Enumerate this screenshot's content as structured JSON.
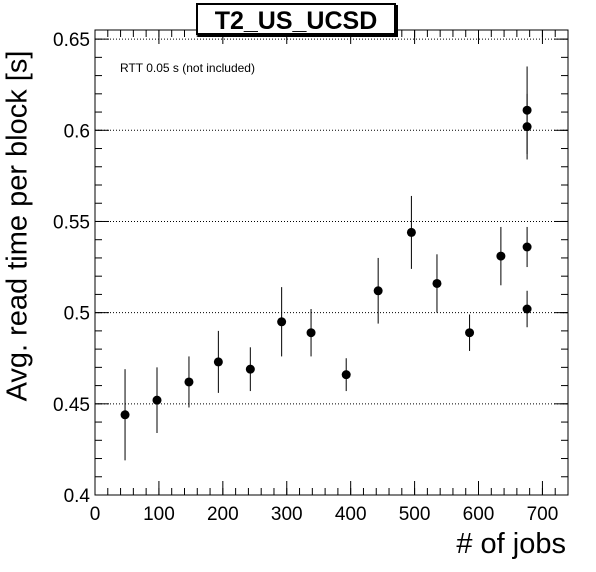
{
  "chart_data": {
    "type": "scatter",
    "title": "T2_US_UCSD",
    "xlabel": "# of jobs",
    "ylabel": "Avg. read time per block [s]",
    "annotation": "RTT 0.05 s (not included)",
    "xlim": [
      0,
      740
    ],
    "ylim": [
      0.4,
      0.655
    ],
    "xticks": [
      0,
      100,
      200,
      300,
      400,
      500,
      600,
      700
    ],
    "yticks": [
      0.4,
      0.45,
      0.5,
      0.55,
      0.6,
      0.65
    ],
    "ytick_labels": [
      "0.4",
      "0.45",
      "0.5",
      "0.55",
      "0.6",
      "0.65"
    ],
    "grid": "horizontal dotted",
    "points": [
      {
        "x": 47,
        "y": 0.444,
        "err": 0.025
      },
      {
        "x": 97,
        "y": 0.452,
        "err": 0.018
      },
      {
        "x": 147,
        "y": 0.462,
        "err": 0.014
      },
      {
        "x": 193,
        "y": 0.473,
        "err": 0.017
      },
      {
        "x": 243,
        "y": 0.469,
        "err": 0.012
      },
      {
        "x": 292,
        "y": 0.495,
        "err": 0.019
      },
      {
        "x": 338,
        "y": 0.489,
        "err": 0.013
      },
      {
        "x": 393,
        "y": 0.466,
        "err": 0.009
      },
      {
        "x": 443,
        "y": 0.512,
        "err": 0.018
      },
      {
        "x": 495,
        "y": 0.544,
        "err": 0.02
      },
      {
        "x": 535,
        "y": 0.516,
        "err": 0.016
      },
      {
        "x": 586,
        "y": 0.489,
        "err": 0.01
      },
      {
        "x": 635,
        "y": 0.531,
        "err": 0.016
      },
      {
        "x": 676,
        "y": 0.502,
        "err": 0.01
      },
      {
        "x": 676,
        "y": 0.536,
        "err": 0.011
      },
      {
        "x": 676,
        "y": 0.602,
        "err": 0.018
      },
      {
        "x": 676,
        "y": 0.611,
        "err": 0.024
      }
    ]
  }
}
